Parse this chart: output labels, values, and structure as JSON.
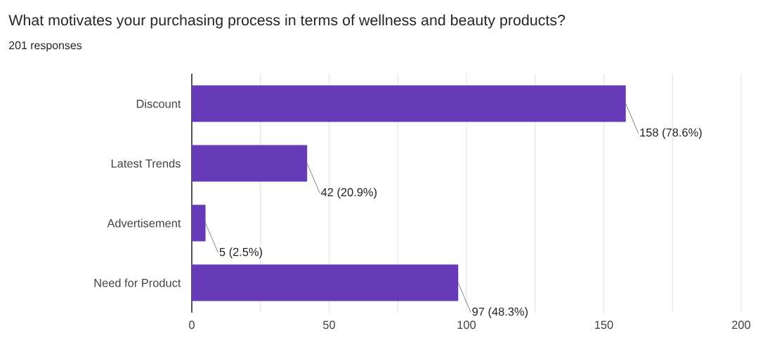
{
  "chart_data": {
    "type": "bar",
    "orientation": "horizontal",
    "title": "What motivates your purchasing process in terms of wellness and beauty products?",
    "subtitle": "201 responses",
    "categories": [
      "Discount",
      "Latest Trends",
      "Advertisement",
      "Need for Product"
    ],
    "values": [
      158,
      42,
      5,
      97
    ],
    "value_labels": [
      "158 (78.6%)",
      "42 (20.9%)",
      "5 (2.5%)",
      "97 (48.3%)"
    ],
    "color": "#673ab7",
    "xlim": [
      0,
      200
    ],
    "xticks": [
      0,
      {
        "value": 25,
        "label": null
      },
      50,
      {
        "value": 75,
        "label": null
      },
      100,
      {
        "value": 125,
        "label": null
      },
      150,
      {
        "value": 175,
        "label": null
      },
      200
    ],
    "grid": "x"
  }
}
